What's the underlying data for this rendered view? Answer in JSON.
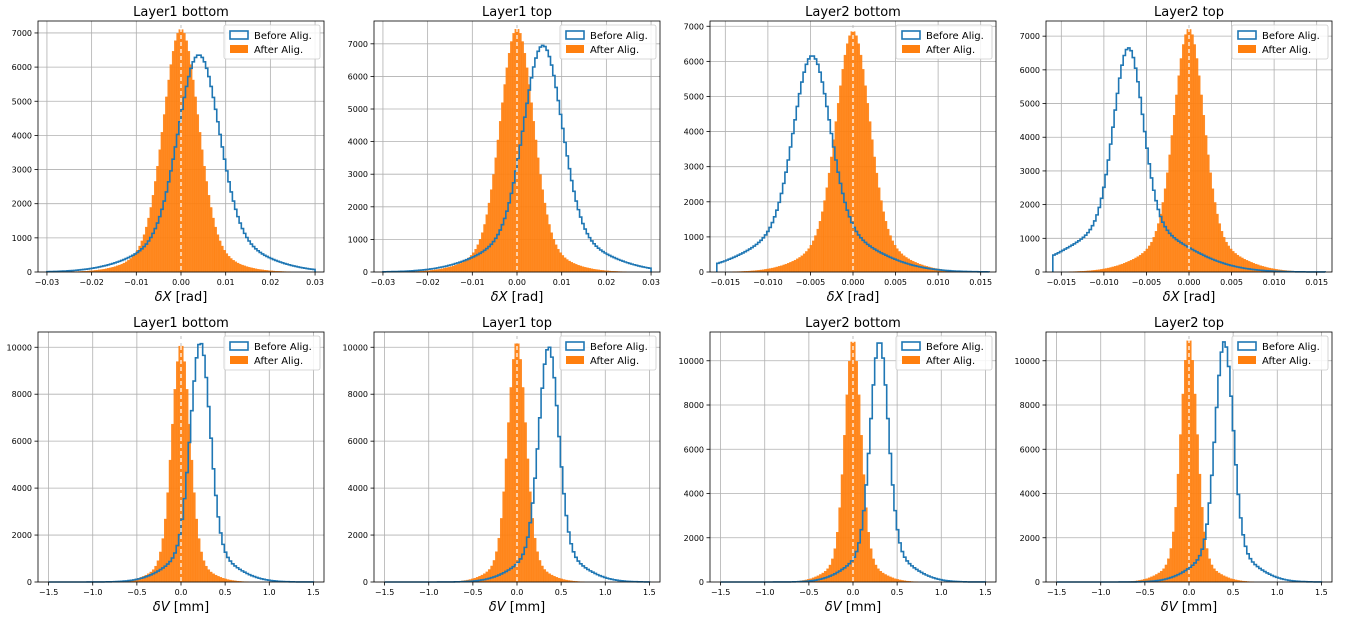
{
  "colors": {
    "before": "#1f77b4",
    "after": "#ff7f0e",
    "grid": "#b0b0b0",
    "zero_line": "#ffffff"
  },
  "chart_data": [
    {
      "type": "histogram",
      "title": "Layer1 bottom",
      "xlabel_sym": "δX",
      "xlabel_unit": " [rad]",
      "xlim": [
        -0.032,
        0.032
      ],
      "ylim": [
        0,
        7350
      ],
      "xticks": [
        -0.03,
        -0.02,
        -0.01,
        0.0,
        0.01,
        0.02,
        0.03
      ],
      "xtick_labels": [
        "−0.03",
        "−0.02",
        "−0.01",
        "0.00",
        "0.01",
        "0.02",
        "0.03"
      ],
      "yticks": [
        0,
        1000,
        2000,
        3000,
        4000,
        5000,
        6000,
        7000
      ],
      "grid": true,
      "legend": "upper-right",
      "zero_line": true,
      "range": [
        -0.03,
        0.03
      ],
      "bins": 120,
      "series": [
        {
          "name": "Before Alig.",
          "style": "step",
          "peak_x": 0.004,
          "peak_y": 6350,
          "sigma": 0.0045,
          "tail": 0.18,
          "tail_sigma": 0.011
        },
        {
          "name": "After Alig.",
          "style": "filled",
          "peak_x": 0.0,
          "peak_y": 7100,
          "sigma": 0.0038,
          "tail": 0.12,
          "tail_sigma": 0.008
        }
      ]
    },
    {
      "type": "histogram",
      "title": "Layer1 top",
      "xlabel_sym": "δX",
      "xlabel_unit": " [rad]",
      "xlim": [
        -0.032,
        0.032
      ],
      "ylim": [
        0,
        7700
      ],
      "xticks": [
        -0.03,
        -0.02,
        -0.01,
        0.0,
        0.01,
        0.02,
        0.03
      ],
      "xtick_labels": [
        "−0.03",
        "−0.02",
        "−0.01",
        "0.00",
        "0.01",
        "0.02",
        "0.03"
      ],
      "yticks": [
        0,
        1000,
        2000,
        3000,
        4000,
        5000,
        6000,
        7000
      ],
      "grid": true,
      "legend": "upper-right",
      "zero_line": true,
      "range": [
        -0.03,
        0.03
      ],
      "bins": 120,
      "series": [
        {
          "name": "Before Alig.",
          "style": "step",
          "peak_x": 0.0058,
          "peak_y": 6950,
          "sigma": 0.0042,
          "tail": 0.18,
          "tail_sigma": 0.011
        },
        {
          "name": "After Alig.",
          "style": "filled",
          "peak_x": 0.0,
          "peak_y": 7450,
          "sigma": 0.0036,
          "tail": 0.12,
          "tail_sigma": 0.008
        }
      ]
    },
    {
      "type": "histogram",
      "title": "Layer2 bottom",
      "xlabel_sym": "δX",
      "xlabel_unit": " [rad]",
      "xlim": [
        -0.0168,
        0.0168
      ],
      "ylim": [
        0,
        7150
      ],
      "xticks": [
        -0.015,
        -0.01,
        -0.005,
        0.0,
        0.005,
        0.01,
        0.015
      ],
      "xtick_labels": [
        "−0.015",
        "−0.010",
        "−0.005",
        "0.000",
        "0.005",
        "0.010",
        "0.015"
      ],
      "yticks": [
        0,
        1000,
        2000,
        3000,
        4000,
        5000,
        6000,
        7000
      ],
      "grid": true,
      "legend": "upper-right",
      "zero_line": true,
      "range": [
        -0.016,
        0.016
      ],
      "bins": 120,
      "series": [
        {
          "name": "Before Alig.",
          "style": "step",
          "peak_x": -0.0048,
          "peak_y": 6150,
          "sigma": 0.0021,
          "tail": 0.22,
          "tail_sigma": 0.006
        },
        {
          "name": "After Alig.",
          "style": "filled",
          "peak_x": 0.0,
          "peak_y": 6850,
          "sigma": 0.0019,
          "tail": 0.15,
          "tail_sigma": 0.0045
        }
      ]
    },
    {
      "type": "histogram",
      "title": "Layer2 top",
      "xlabel_sym": "δX",
      "xlabel_unit": " [rad]",
      "xlim": [
        -0.0168,
        0.0168
      ],
      "ylim": [
        0,
        7450
      ],
      "xticks": [
        -0.015,
        -0.01,
        -0.005,
        0.0,
        0.005,
        0.01,
        0.015
      ],
      "xtick_labels": [
        "−0.015",
        "−0.010",
        "−0.005",
        "0.000",
        "0.005",
        "0.010",
        "0.015"
      ],
      "yticks": [
        0,
        1000,
        2000,
        3000,
        4000,
        5000,
        6000,
        7000
      ],
      "grid": true,
      "legend": "upper-right",
      "zero_line": true,
      "range": [
        -0.016,
        0.016
      ],
      "bins": 120,
      "series": [
        {
          "name": "Before Alig.",
          "style": "step",
          "peak_x": -0.0071,
          "peak_y": 6650,
          "sigma": 0.0017,
          "tail": 0.22,
          "tail_sigma": 0.006
        },
        {
          "name": "After Alig.",
          "style": "filled",
          "peak_x": 0.0,
          "peak_y": 7200,
          "sigma": 0.0017,
          "tail": 0.15,
          "tail_sigma": 0.0045
        }
      ]
    },
    {
      "type": "histogram",
      "title": "Layer1 bottom",
      "xlabel_sym": "δV",
      "xlabel_unit": " [mm]",
      "xlim": [
        -1.62,
        1.62
      ],
      "ylim": [
        0,
        10650
      ],
      "xticks": [
        -1.5,
        -1.0,
        -0.5,
        0.0,
        0.5,
        1.0,
        1.5
      ],
      "xtick_labels": [
        "−1.5",
        "−1.0",
        "−0.5",
        "0.0",
        "0.5",
        "1.0",
        "1.5"
      ],
      "yticks": [
        0,
        2000,
        4000,
        6000,
        8000,
        10000
      ],
      "grid": true,
      "legend": "upper-right",
      "zero_line": true,
      "range": [
        -1.5,
        1.5
      ],
      "bins": 110,
      "series": [
        {
          "name": "Before Alig.",
          "style": "step",
          "peak_x": 0.22,
          "peak_y": 10150,
          "sigma": 0.11,
          "tail": 0.14,
          "tail_sigma": 0.32
        },
        {
          "name": "After Alig.",
          "style": "filled",
          "peak_x": 0.0,
          "peak_y": 10050,
          "sigma": 0.1,
          "tail": 0.1,
          "tail_sigma": 0.25
        }
      ]
    },
    {
      "type": "histogram",
      "title": "Layer1 top",
      "xlabel_sym": "δV",
      "xlabel_unit": " [mm]",
      "xlim": [
        -1.62,
        1.62
      ],
      "ylim": [
        0,
        10650
      ],
      "xticks": [
        -1.5,
        -1.0,
        -0.5,
        0.0,
        0.5,
        1.0,
        1.5
      ],
      "xtick_labels": [
        "−1.5",
        "−1.0",
        "−0.5",
        "0.0",
        "0.5",
        "1.0",
        "1.5"
      ],
      "yticks": [
        0,
        2000,
        4000,
        6000,
        8000,
        10000
      ],
      "grid": true,
      "legend": "upper-right",
      "zero_line": true,
      "range": [
        -1.5,
        1.5
      ],
      "bins": 110,
      "series": [
        {
          "name": "Before Alig.",
          "style": "step",
          "peak_x": 0.36,
          "peak_y": 10000,
          "sigma": 0.11,
          "tail": 0.14,
          "tail_sigma": 0.32
        },
        {
          "name": "After Alig.",
          "style": "filled",
          "peak_x": 0.0,
          "peak_y": 10150,
          "sigma": 0.1,
          "tail": 0.1,
          "tail_sigma": 0.25
        }
      ]
    },
    {
      "type": "histogram",
      "title": "Layer2 bottom",
      "xlabel_sym": "δV",
      "xlabel_unit": " [mm]",
      "xlim": [
        -1.62,
        1.62
      ],
      "ylim": [
        0,
        11300
      ],
      "xticks": [
        -1.5,
        -1.0,
        -0.5,
        0.0,
        0.5,
        1.0,
        1.5
      ],
      "xtick_labels": [
        "−1.5",
        "−1.0",
        "−0.5",
        "0.0",
        "0.5",
        "1.0",
        "1.5"
      ],
      "yticks": [
        0,
        2000,
        4000,
        6000,
        8000,
        10000
      ],
      "grid": true,
      "legend": "upper-right",
      "zero_line": true,
      "range": [
        -1.5,
        1.5
      ],
      "bins": 110,
      "series": [
        {
          "name": "Before Alig.",
          "style": "step",
          "peak_x": 0.3,
          "peak_y": 10800,
          "sigma": 0.1,
          "tail": 0.14,
          "tail_sigma": 0.3
        },
        {
          "name": "After Alig.",
          "style": "filled",
          "peak_x": 0.0,
          "peak_y": 10850,
          "sigma": 0.09,
          "tail": 0.1,
          "tail_sigma": 0.24
        }
      ]
    },
    {
      "type": "histogram",
      "title": "Layer2 top",
      "xlabel_sym": "δV",
      "xlabel_unit": " [mm]",
      "xlim": [
        -1.62,
        1.62
      ],
      "ylim": [
        0,
        11300
      ],
      "xticks": [
        -1.5,
        -1.0,
        -0.5,
        0.0,
        0.5,
        1.0,
        1.5
      ],
      "xtick_labels": [
        "−1.5",
        "−1.0",
        "−0.5",
        "0.0",
        "0.5",
        "1.0",
        "1.5"
      ],
      "yticks": [
        0,
        2000,
        4000,
        6000,
        8000,
        10000
      ],
      "grid": true,
      "legend": "upper-right",
      "zero_line": true,
      "range": [
        -1.5,
        1.5
      ],
      "bins": 110,
      "series": [
        {
          "name": "Before Alig.",
          "style": "step",
          "peak_x": 0.4,
          "peak_y": 10850,
          "sigma": 0.1,
          "tail": 0.14,
          "tail_sigma": 0.3
        },
        {
          "name": "After Alig.",
          "style": "filled",
          "peak_x": 0.0,
          "peak_y": 10900,
          "sigma": 0.09,
          "tail": 0.1,
          "tail_sigma": 0.24
        }
      ]
    }
  ]
}
